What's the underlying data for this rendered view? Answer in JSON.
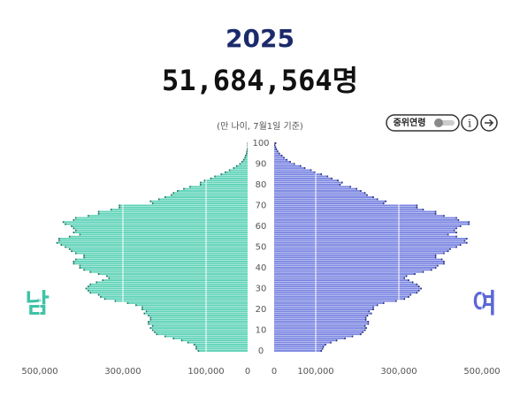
{
  "chart_data": {
    "type": "pyramid",
    "title": "2025",
    "subtitle": "51,684,564명",
    "note": "(만 나이, 7월1일 기준)",
    "controls": {
      "median_age": "중위연령"
    },
    "categories": [
      0,
      null,
      null,
      null,
      null,
      null,
      null,
      null,
      null,
      null,
      10,
      null,
      null,
      null,
      null,
      null,
      null,
      null,
      null,
      null,
      20,
      null,
      null,
      null,
      null,
      null,
      null,
      null,
      null,
      null,
      30,
      null,
      null,
      null,
      null,
      null,
      null,
      null,
      null,
      null,
      40,
      null,
      null,
      null,
      null,
      null,
      null,
      null,
      null,
      null,
      50,
      null,
      null,
      null,
      null,
      null,
      null,
      null,
      null,
      null,
      60,
      null,
      null,
      null,
      null,
      null,
      null,
      null,
      null,
      null,
      70,
      null,
      null,
      null,
      null,
      null,
      null,
      null,
      null,
      null,
      80,
      null,
      null,
      null,
      null,
      null,
      null,
      null,
      null,
      null,
      90,
      null,
      null,
      null,
      null,
      null,
      null,
      null,
      null,
      null,
      100
    ],
    "xlim": [
      0,
      500000
    ],
    "xticks": [
      0,
      {
        "value": 100000,
        "label": "100,000"
      },
      {
        "value": 300000,
        "label": "300,000"
      },
      {
        "value": 500000,
        "label": "500,000"
      }
    ],
    "grid": true,
    "series": [
      {
        "name": "남",
        "color": "#5fd3b8",
        "edge": "#2b6f62",
        "values": [
          120000,
          125000,
          125000,
          130000,
          145000,
          160000,
          180000,
          200000,
          220000,
          225000,
          230000,
          235000,
          230000,
          240000,
          240000,
          235000,
          235000,
          240000,
          250000,
          245000,
          255000,
          255000,
          270000,
          290000,
          320000,
          345000,
          355000,
          360000,
          380000,
          385000,
          390000,
          385000,
          380000,
          365000,
          350000,
          335000,
          340000,
          360000,
          380000,
          395000,
          405000,
          405000,
          420000,
          420000,
          415000,
          395000,
          395000,
          415000,
          425000,
          430000,
          440000,
          450000,
          460000,
          455000,
          455000,
          430000,
          405000,
          420000,
          415000,
          420000,
          425000,
          440000,
          445000,
          420000,
          415000,
          385000,
          360000,
          360000,
          330000,
          310000,
          310000,
          230000,
          235000,
          215000,
          200000,
          185000,
          180000,
          170000,
          155000,
          140000,
          115000,
          115000,
          105000,
          90000,
          80000,
          65000,
          55000,
          45000,
          35000,
          28000,
          20000,
          15000,
          11000,
          8000,
          6000,
          4000,
          3000,
          2000,
          1000,
          1000,
          1000
        ]
      },
      {
        "name": "여",
        "color": "#7b86e2",
        "edge": "#27307a",
        "values": [
          115000,
          118000,
          120000,
          125000,
          138000,
          152000,
          172000,
          190000,
          210000,
          215000,
          220000,
          223000,
          220000,
          228000,
          228000,
          222000,
          222000,
          226000,
          235000,
          230000,
          240000,
          240000,
          250000,
          265000,
          295000,
          315000,
          325000,
          330000,
          345000,
          350000,
          355000,
          350000,
          345000,
          335000,
          325000,
          315000,
          320000,
          340000,
          360000,
          380000,
          390000,
          395000,
          410000,
          410000,
          405000,
          390000,
          390000,
          410000,
          420000,
          425000,
          440000,
          450000,
          465000,
          460000,
          465000,
          440000,
          420000,
          440000,
          435000,
          440000,
          450000,
          470000,
          470000,
          445000,
          440000,
          410000,
          390000,
          390000,
          360000,
          345000,
          345000,
          265000,
          270000,
          250000,
          240000,
          225000,
          220000,
          210000,
          200000,
          185000,
          160000,
          165000,
          155000,
          140000,
          130000,
          115000,
          100000,
          90000,
          75000,
          65000,
          50000,
          40000,
          32000,
          25000,
          20000,
          14000,
          10000,
          7000,
          5000,
          3000,
          5000
        ]
      }
    ]
  }
}
